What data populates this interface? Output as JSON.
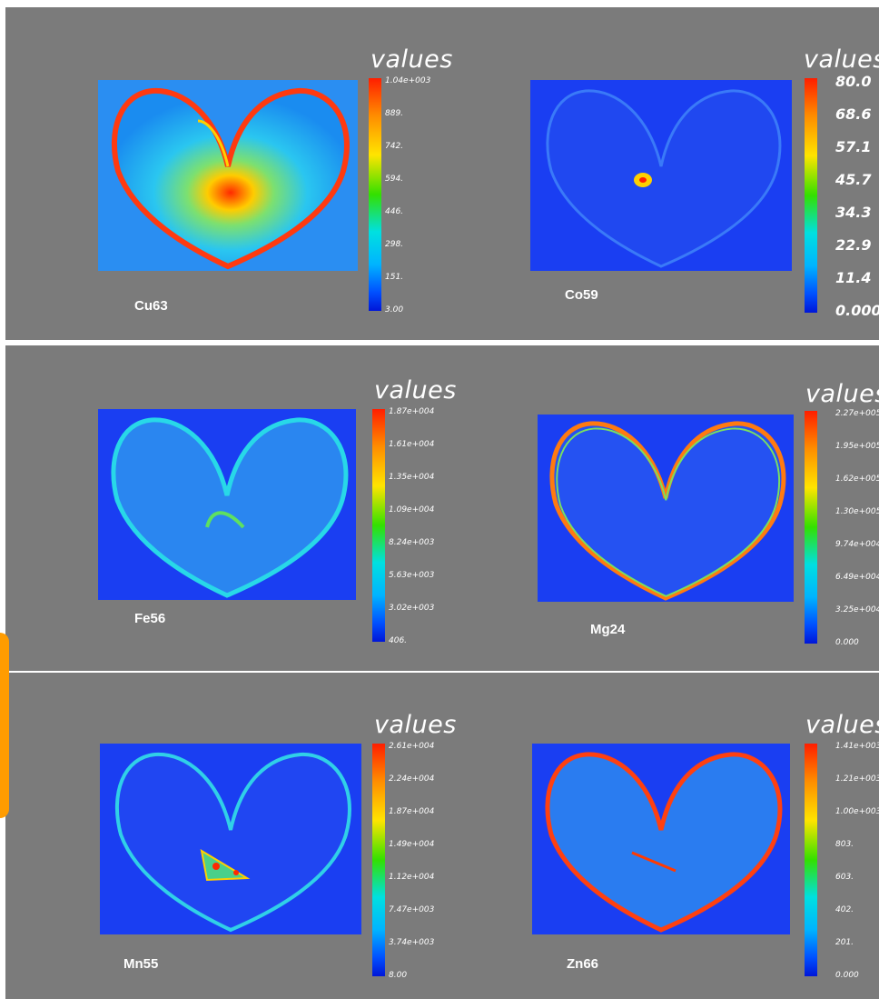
{
  "colors": {
    "panel_bg": "#7b7b7b",
    "map_bg": "#1a3ef2",
    "accent_tab": "#ff9c00"
  },
  "maps": [
    {
      "element": "Cu63",
      "legend_title": "values",
      "ticks": [
        "1.04e+003",
        "889.",
        "742.",
        "594.",
        "446.",
        "298.",
        "151.",
        "3.00"
      ],
      "color_scheme": "high"
    },
    {
      "element": "Co59",
      "legend_title": "values",
      "ticks": [
        "80.0",
        "68.6",
        "57.1",
        "45.7",
        "34.3",
        "22.9",
        "11.4",
        "0.000"
      ],
      "color_scheme": "low"
    },
    {
      "element": "Fe56",
      "legend_title": "values",
      "ticks": [
        "1.87e+004",
        "1.61e+004",
        "1.35e+004",
        "1.09e+004",
        "8.24e+003",
        "5.63e+003",
        "3.02e+003",
        "406."
      ],
      "color_scheme": "lowmid"
    },
    {
      "element": "Mg24",
      "legend_title": "values",
      "ticks": [
        "2.27e+005",
        "1.95e+005",
        "1.62e+005",
        "1.30e+005",
        "9.74e+004",
        "6.49e+004",
        "3.25e+004",
        "0.000"
      ],
      "color_scheme": "rim"
    },
    {
      "element": "Mn55",
      "legend_title": "values",
      "ticks": [
        "2.61e+004",
        "2.24e+004",
        "1.87e+004",
        "1.49e+004",
        "1.12e+004",
        "7.47e+003",
        "3.74e+003",
        "8.00"
      ],
      "color_scheme": "center"
    },
    {
      "element": "Zn66",
      "legend_title": "values",
      "ticks": [
        "1.41e+003",
        "1.21e+003",
        "1.00e+003",
        "803.",
        "603.",
        "402.",
        "201.",
        "0.000"
      ],
      "color_scheme": "rim"
    }
  ]
}
